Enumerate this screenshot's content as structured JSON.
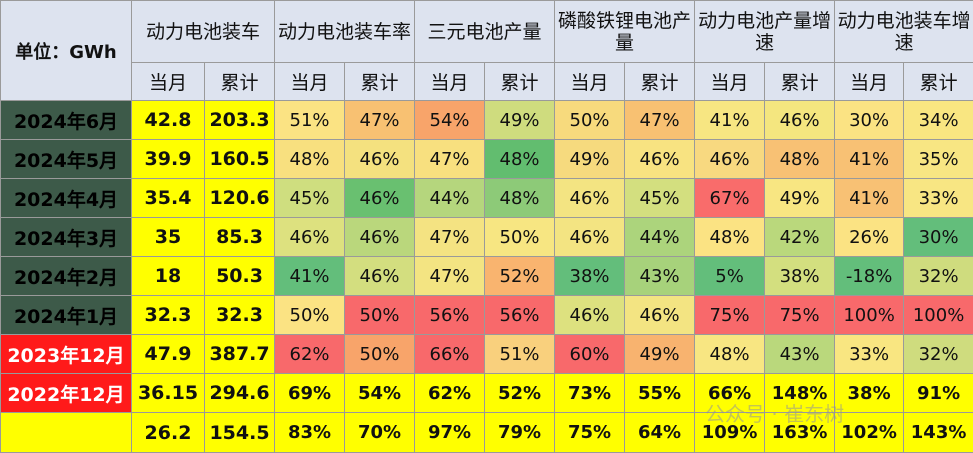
{
  "chart_data": {
    "type": "table",
    "unit_label": "单位：GWh",
    "groups": [
      "动力电池装车",
      "动力电池装车率",
      "三元电池产量",
      "磷酸铁锂电池产量",
      "动力电池产量增速",
      "动力电池装车增速"
    ],
    "subheaders": [
      "当月",
      "累计"
    ],
    "rows": [
      {
        "label": "2024年6月",
        "cells": [
          "42.8",
          "203.3",
          "51%",
          "47%",
          "54%",
          "49%",
          "50%",
          "47%",
          "41%",
          "46%",
          "30%",
          "34%"
        ],
        "colors": [
          "#ffff00",
          "#ffff00",
          "#fbe383",
          "#f8c172",
          "#f8a46a",
          "#cfdc7e",
          "#f7da7d",
          "#f8c172",
          "#f7e682",
          "#f4e67f",
          "#fbe383",
          "#f9e681"
        ]
      },
      {
        "label": "2024年5月",
        "cells": [
          "39.9",
          "160.5",
          "48%",
          "46%",
          "47%",
          "48%",
          "49%",
          "46%",
          "46%",
          "48%",
          "41%",
          "35%"
        ],
        "colors": [
          "#ffff00",
          "#ffff00",
          "#f8e07f",
          "#f4e17f",
          "#f8e07f",
          "#62bd6f",
          "#f6da7e",
          "#f8e381",
          "#f8d980",
          "#f8c174",
          "#f8c174",
          "#f8e683"
        ]
      },
      {
        "label": "2024年4月",
        "cells": [
          "35.4",
          "120.6",
          "45%",
          "46%",
          "44%",
          "48%",
          "46%",
          "45%",
          "67%",
          "49%",
          "41%",
          "33%"
        ],
        "colors": [
          "#ffff00",
          "#ffff00",
          "#cfde7f",
          "#69c070",
          "#b5d67d",
          "#8dca78",
          "#f3e482",
          "#d3df7f",
          "#f96c6b",
          "#f8e682",
          "#f8c174",
          "#f8e683"
        ]
      },
      {
        "label": "2024年3月",
        "cells": [
          "35",
          "85.3",
          "46%",
          "46%",
          "47%",
          "50%",
          "46%",
          "44%",
          "48%",
          "42%",
          "26%",
          "30%"
        ],
        "colors": [
          "#ffff00",
          "#ffff00",
          "#dde17f",
          "#bad77c",
          "#f4e382",
          "#f7e682",
          "#f3e482",
          "#acd47c",
          "#fbe383",
          "#bad87c",
          "#fbe383",
          "#63be7b"
        ]
      },
      {
        "label": "2024年2月",
        "cells": [
          "18",
          "50.3",
          "41%",
          "46%",
          "47%",
          "52%",
          "38%",
          "43%",
          "5%",
          "38%",
          "-18%",
          "32%"
        ],
        "colors": [
          "#ffff00",
          "#ffff00",
          "#63be7b",
          "#d3de7f",
          "#f3e482",
          "#f9b46f",
          "#63be7b",
          "#a7d27b",
          "#63be7b",
          "#d3df7f",
          "#63be7b",
          "#cfdc7e"
        ]
      },
      {
        "label": "2024年1月",
        "cells": [
          "32.3",
          "32.3",
          "50%",
          "50%",
          "56%",
          "56%",
          "46%",
          "46%",
          "75%",
          "75%",
          "100%",
          "100%"
        ],
        "colors": [
          "#ffff00",
          "#ffff00",
          "#fbe383",
          "#f8696b",
          "#f8696b",
          "#f8696b",
          "#dde17f",
          "#f3e482",
          "#f8696b",
          "#f8696b",
          "#f8696b",
          "#f8696b"
        ]
      },
      {
        "label": "2023年12月",
        "cells": [
          "47.9",
          "387.7",
          "62%",
          "50%",
          "66%",
          "51%",
          "60%",
          "49%",
          "48%",
          "43%",
          "33%",
          "32%"
        ],
        "colors": [
          "#ffff00",
          "#ffff00",
          "#f8696b",
          "#f8a46a",
          "#f8696b",
          "#f9d07d",
          "#f8696b",
          "#f8b36f",
          "#f8e682",
          "#bad87c",
          "#f9e681",
          "#cfdc7e"
        ]
      },
      {
        "label": "2022年12月",
        "cells": [
          "36.15",
          "294.6",
          "69%",
          "54%",
          "62%",
          "52%",
          "73%",
          "55%",
          "66%",
          "148%",
          "38%",
          "91%"
        ],
        "colors": [
          "#ffff00",
          "#ffff00",
          "#ffff00",
          "#ffff00",
          "#ffff00",
          "#ffff00",
          "#ffff00",
          "#ffff00",
          "#ffff00",
          "#ffff00",
          "#ffff00",
          "#ffff00"
        ]
      },
      {
        "label": "",
        "cells": [
          "26.2",
          "154.5",
          "83%",
          "70%",
          "97%",
          "79%",
          "75%",
          "64%",
          "109%",
          "163%",
          "102%",
          "143%"
        ],
        "colors": [
          "#ffff00",
          "#ffff00",
          "#ffff00",
          "#ffff00",
          "#ffff00",
          "#ffff00",
          "#ffff00",
          "#ffff00",
          "#ffff00",
          "#ffff00",
          "#ffff00",
          "#ffff00"
        ]
      }
    ],
    "row_label_styles": [
      "dark",
      "dark",
      "dark",
      "dark",
      "dark",
      "dark",
      "red",
      "red",
      "yel"
    ]
  },
  "watermark": "公众号 · 崔东树"
}
